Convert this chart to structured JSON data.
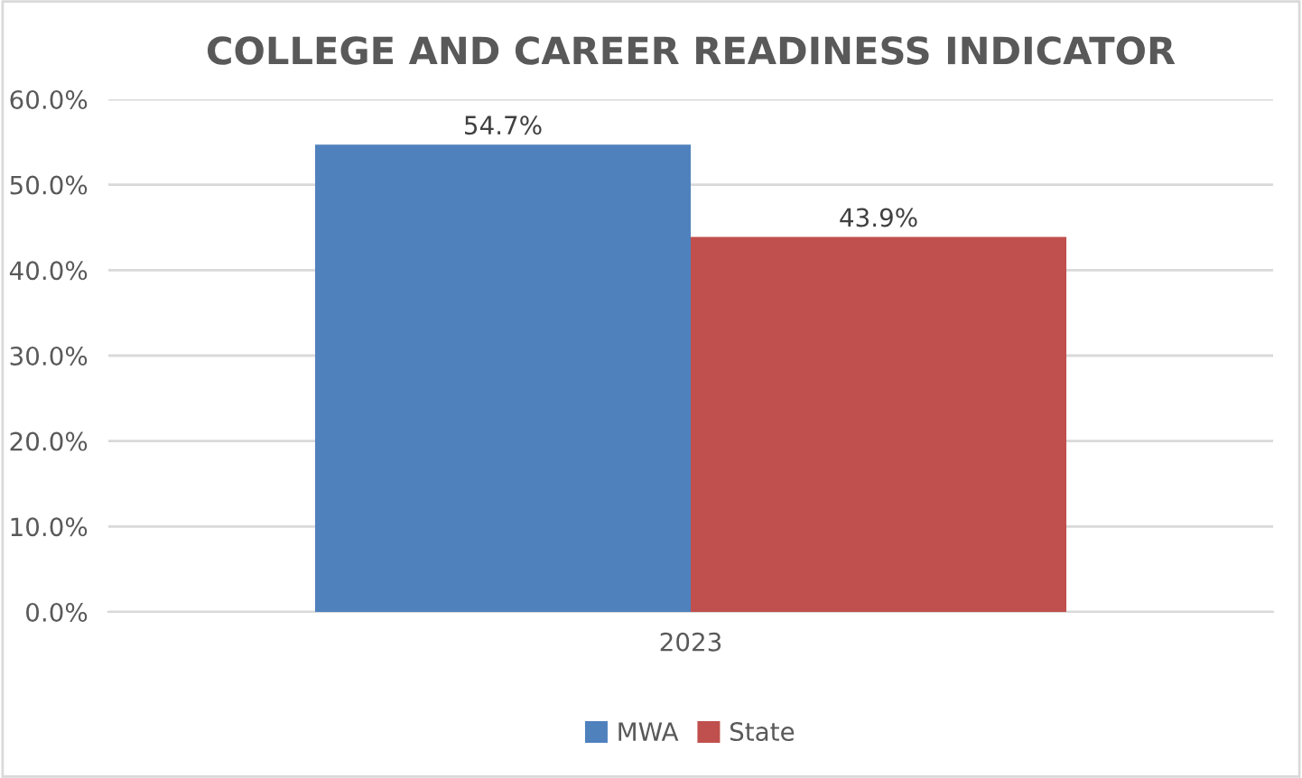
{
  "chart_data": {
    "type": "bar",
    "title": "COLLEGE AND CAREER READINESS INDICATOR",
    "categories": [
      "2023"
    ],
    "series": [
      {
        "name": "MWA",
        "color": "#4f81bd",
        "values": [
          54.7
        ],
        "value_labels": [
          "54.7%"
        ]
      },
      {
        "name": "State",
        "color": "#c0504d",
        "values": [
          43.9
        ],
        "value_labels": [
          "43.9%"
        ]
      }
    ],
    "ylim": [
      0,
      60
    ],
    "yticks": [
      {
        "value": 0,
        "label": "0.0%"
      },
      {
        "value": 10,
        "label": "10.0%"
      },
      {
        "value": 20,
        "label": "20.0%"
      },
      {
        "value": 30,
        "label": "30.0%"
      },
      {
        "value": 40,
        "label": "40.0%"
      },
      {
        "value": 50,
        "label": "50.0%"
      },
      {
        "value": 60,
        "label": "60.0%"
      }
    ],
    "grid": "y",
    "legend": "bottom"
  }
}
